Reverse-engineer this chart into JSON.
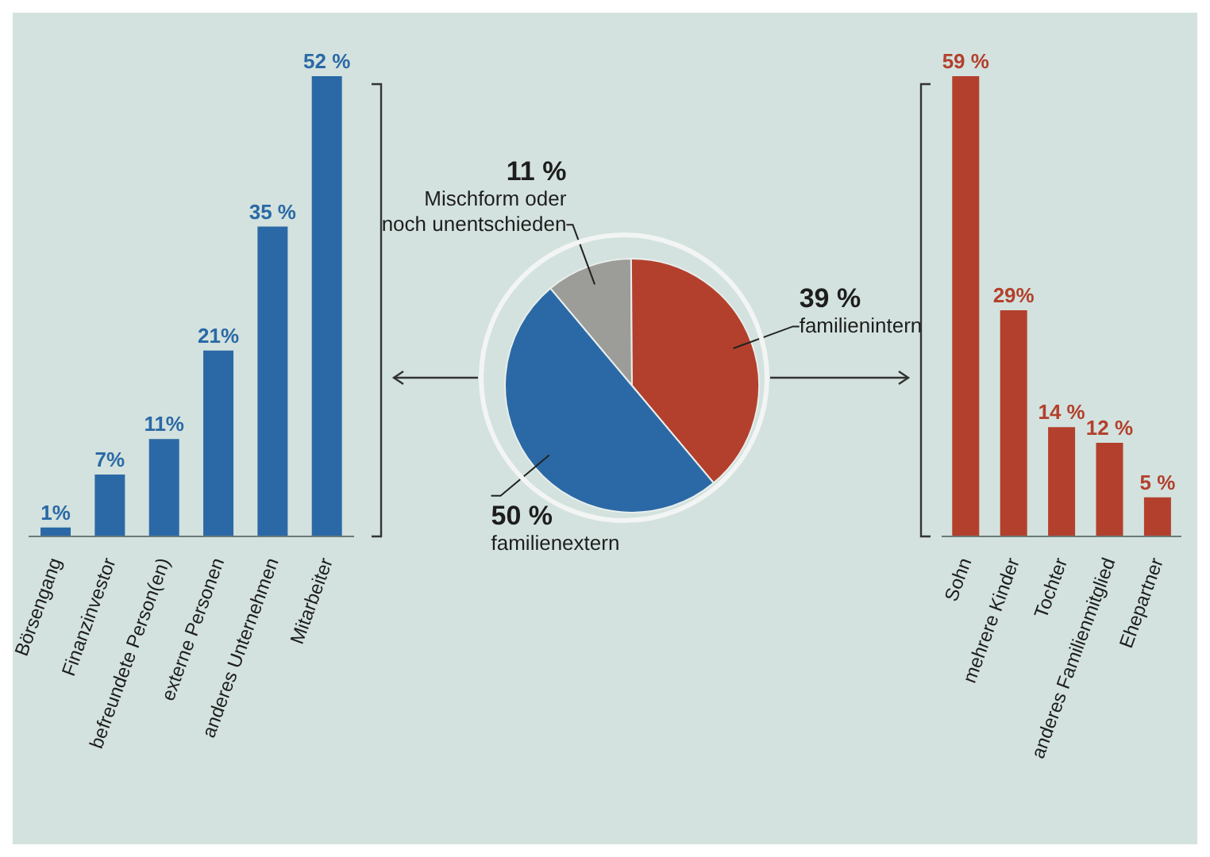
{
  "chart_data": [
    {
      "type": "bar",
      "categories": [
        "Börsengang",
        "Finanzinvestor",
        "befreundete Person(en)",
        "externe Personen",
        "anderes Unternehmen",
        "Mitarbeiter"
      ],
      "values": [
        1,
        7,
        11,
        21,
        35,
        52
      ],
      "color": "#2b69a6",
      "value_labels": [
        "1%",
        "7%",
        "11%",
        "21%",
        "35 %",
        "52 %"
      ]
    },
    {
      "type": "pie",
      "categories": [
        "Mischform oder noch unentschieden",
        "familienintern",
        "familienextern"
      ],
      "values": [
        11,
        39,
        50
      ],
      "colors": [
        "#9c9c98",
        "#b3402d",
        "#2b69a6"
      ],
      "value_labels": [
        "11 %",
        "39 %",
        "50 %"
      ]
    },
    {
      "type": "bar",
      "categories": [
        "Sohn",
        "mehrere Kinder",
        "Tochter",
        "anderes Familienmitglied",
        "Ehepartner"
      ],
      "values": [
        59,
        29,
        14,
        12,
        5
      ],
      "color": "#b3402d",
      "value_labels": [
        "59 %",
        "29%",
        "14 %",
        "12 %",
        "5 %"
      ]
    }
  ]
}
